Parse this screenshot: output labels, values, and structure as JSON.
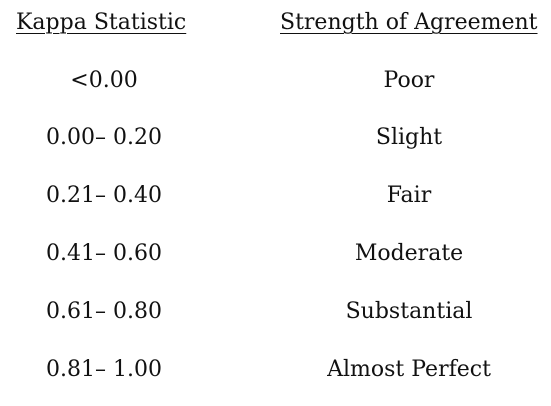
{
  "headers": {
    "col1": "Kappa Statistic",
    "col2": "Strength of Agreement"
  },
  "rows": [
    {
      "kappa": "<0.00",
      "agreement": "Poor"
    },
    {
      "kappa": "0.00– 0.20",
      "agreement": "Slight"
    },
    {
      "kappa": "0.21– 0.40",
      "agreement": "Fair"
    },
    {
      "kappa": "0.41– 0.60",
      "agreement": "Moderate"
    },
    {
      "kappa": "0.61– 0.80",
      "agreement": "Substantial"
    },
    {
      "kappa": "0.81– 1.00",
      "agreement": "Almost Perfect"
    }
  ]
}
